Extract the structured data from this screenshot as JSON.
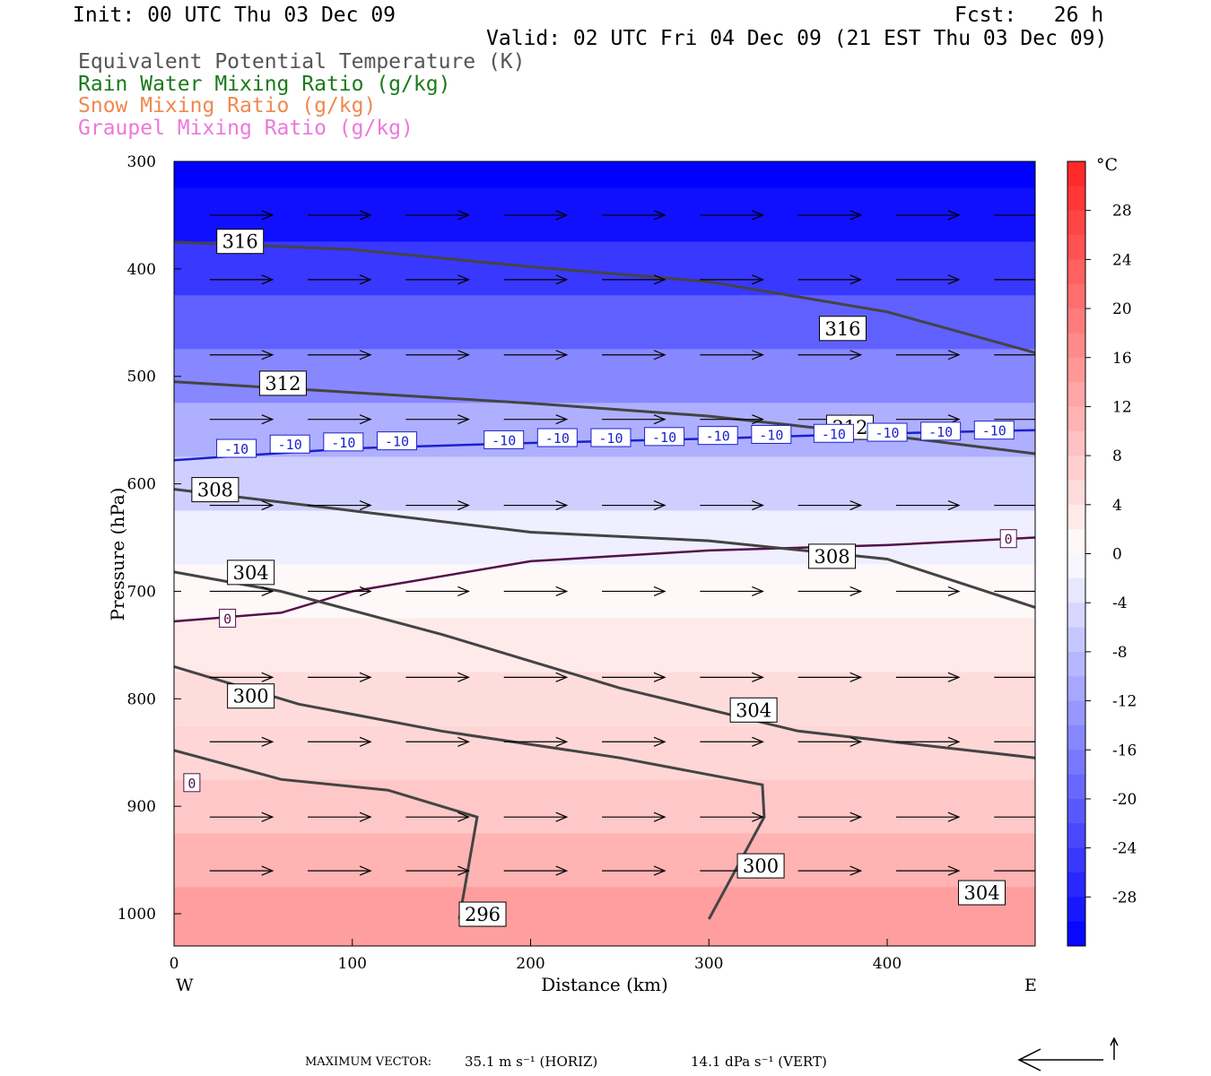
{
  "header": {
    "init": "Init: 00 UTC Thu 03 Dec 09",
    "fcst": "Fcst:   26 h",
    "valid": "Valid: 02 UTC Fri 04 Dec 09 (21 EST Thu 03 Dec 09)",
    "legend": [
      {
        "text": "Equivalent Potential Temperature (K)",
        "color": "#555555"
      },
      {
        "text": "Rain Water Mixing Ratio (g/kg)",
        "color": "#1a7a1a"
      },
      {
        "text": "Snow Mixing Ratio (g/kg)",
        "color": "#f08850"
      },
      {
        "text": "Graupel Mixing Ratio (g/kg)",
        "color": "#ee77dd"
      }
    ]
  },
  "chart_data": {
    "type": "heatmap",
    "xlabel": "Distance (km)",
    "ylabel": "Pressure (hPa)",
    "xlim": [
      0,
      483
    ],
    "ylim": [
      1030,
      300
    ],
    "x_ticks": [
      0,
      100,
      200,
      300,
      400
    ],
    "y_ticks": [
      300,
      400,
      500,
      600,
      700,
      800,
      900,
      1000
    ],
    "x_end_labels": {
      "left": "W",
      "right": "E"
    },
    "colorbar": {
      "unit": "°C",
      "ticks": [
        28,
        24,
        20,
        16,
        12,
        8,
        4,
        0,
        -4,
        -8,
        -12,
        -16,
        -20,
        -24,
        -28
      ],
      "range": [
        -32,
        32
      ],
      "cold_color": "#0000ff",
      "warm_color": "#ff2222"
    },
    "temperature_field": [
      {
        "p": 300,
        "t": -32
      },
      {
        "p": 350,
        "t": -30
      },
      {
        "p": 400,
        "t": -25
      },
      {
        "p": 450,
        "t": -20
      },
      {
        "p": 500,
        "t": -15
      },
      {
        "p": 550,
        "t": -10
      },
      {
        "p": 600,
        "t": -6
      },
      {
        "p": 650,
        "t": -2
      },
      {
        "p": 700,
        "t": 1
      },
      {
        "p": 750,
        "t": 3
      },
      {
        "p": 800,
        "t": 5
      },
      {
        "p": 850,
        "t": 6
      },
      {
        "p": 900,
        "t": 8
      },
      {
        "p": 950,
        "t": 11
      },
      {
        "p": 1000,
        "t": 14
      }
    ],
    "theta_e_contours": [
      {
        "label": "316",
        "points": [
          [
            0,
            375
          ],
          [
            100,
            382
          ],
          [
            200,
            398
          ],
          [
            300,
            412
          ],
          [
            400,
            440
          ],
          [
            483,
            478
          ]
        ],
        "label_at": [
          24,
          374
        ]
      },
      {
        "label": "316",
        "label_at": [
          362,
          455
        ]
      },
      {
        "label": "312",
        "points": [
          [
            0,
            505
          ],
          [
            100,
            515
          ],
          [
            200,
            525
          ],
          [
            300,
            537
          ],
          [
            400,
            555
          ],
          [
            483,
            572
          ]
        ],
        "label_at": [
          48,
          506
        ]
      },
      {
        "label": "312",
        "label_at": [
          366,
          547
        ]
      },
      {
        "label": "308",
        "points": [
          [
            0,
            605
          ],
          [
            100,
            625
          ],
          [
            200,
            645
          ],
          [
            300,
            653
          ],
          [
            400,
            670
          ],
          [
            483,
            715
          ]
        ],
        "label_at": [
          10,
          605
        ]
      },
      {
        "label": "308",
        "label_at": [
          356,
          667
        ]
      },
      {
        "label": "304",
        "points": [
          [
            0,
            682
          ],
          [
            60,
            700
          ],
          [
            150,
            740
          ],
          [
            250,
            790
          ],
          [
            350,
            830
          ],
          [
            483,
            855
          ]
        ],
        "label_at": [
          30,
          682
        ]
      },
      {
        "label": "304",
        "label_at": [
          312,
          810
        ]
      },
      {
        "label": "300",
        "points": [
          [
            0,
            770
          ],
          [
            70,
            805
          ],
          [
            150,
            830
          ],
          [
            250,
            855
          ],
          [
            330,
            880
          ],
          [
            331,
            910
          ],
          [
            300,
            1005
          ]
        ],
        "label_at": [
          30,
          797
        ]
      },
      {
        "label": "300",
        "label_at": [
          316,
          955
        ]
      },
      {
        "label": "296",
        "points": [
          [
            0,
            848
          ],
          [
            60,
            875
          ],
          [
            120,
            885
          ],
          [
            170,
            910
          ],
          [
            160,
            1005
          ]
        ],
        "label_at": [
          160,
          1000
        ]
      },
      {
        "label": "304",
        "label_at": [
          440,
          980
        ]
      }
    ],
    "isotherms": [
      {
        "label": "-10",
        "t": -10,
        "points": [
          [
            0,
            578
          ],
          [
            100,
            567
          ],
          [
            200,
            562
          ],
          [
            300,
            558
          ],
          [
            400,
            553
          ],
          [
            483,
            550
          ]
        ]
      },
      {
        "label": "0",
        "t": 0,
        "points": [
          [
            0,
            728
          ],
          [
            60,
            720
          ],
          [
            100,
            700
          ],
          [
            200,
            672
          ],
          [
            300,
            662
          ],
          [
            400,
            657
          ],
          [
            483,
            650
          ]
        ]
      }
    ],
    "wind_vectors_note": "horizontal arrows",
    "max_vector": {
      "text": "MAXIMUM VECTOR:",
      "horiz": "35.1 m s⁻¹ (HORIZ)",
      "vert": "14.1 dPa s⁻¹ (VERT)"
    }
  }
}
